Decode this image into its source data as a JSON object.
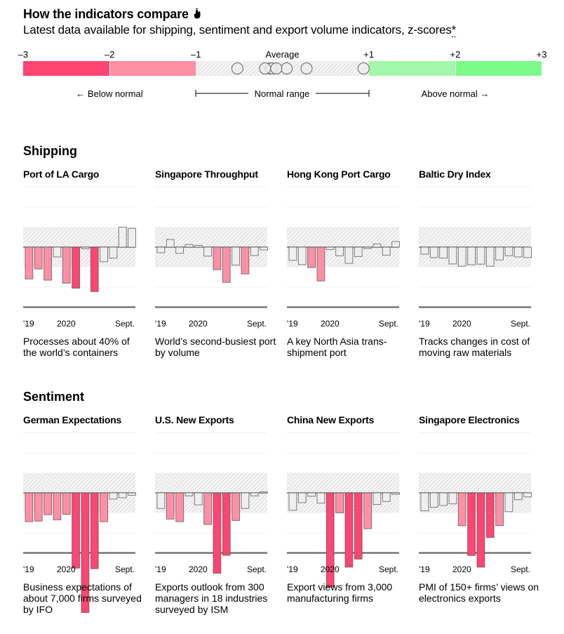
{
  "header": {
    "title": "How the indicators compare",
    "title_icon": "pointer-hand-icon",
    "subtitle": "Latest data available for shipping, sentiment and export volume indicators, z-scores",
    "footnote_marker": "*"
  },
  "legend": {
    "ticks": [
      "–3",
      "–2",
      "–1",
      "Average",
      "+1",
      "+2",
      "+3"
    ],
    "below_label": "Below normal",
    "normal_label": "Normal range",
    "above_label": "Above normal",
    "colors": {
      "very_low": "#ff4572",
      "low": "#ff8fa5",
      "high": "#a3f7a9",
      "very_high": "#7dfb8a"
    }
  },
  "chart_data": [
    {
      "type": "bar",
      "section": "Shipping",
      "title": "Port of LA Cargo",
      "description": "Processes about 40% of the world’s containers",
      "x_labels": [
        "'19",
        "2020",
        "Sept."
      ],
      "values": [
        -1.59,
        -1.09,
        -1.65,
        -0.49,
        -1.8,
        -2.05,
        -0.08,
        -2.22,
        -0.73,
        -0.55,
        1.0,
        0.94
      ],
      "ylim": [
        -3,
        3
      ],
      "normal_range": [
        -1,
        1
      ]
    },
    {
      "type": "bar",
      "section": "Shipping",
      "title": "Singapore Throughput",
      "description": "World’s second-busiest port by volume",
      "x_labels": [
        "'19",
        "2020",
        "Sept."
      ],
      "values": [
        -0.28,
        0.38,
        -0.31,
        0.13,
        0.09,
        -0.45,
        -1.13,
        -1.76,
        -0.9,
        -1.34,
        -0.42,
        -0.14
      ],
      "ylim": [
        -3,
        3
      ],
      "normal_range": [
        -1,
        1
      ]
    },
    {
      "type": "bar",
      "section": "Shipping",
      "title": "Hong Kong Port Cargo",
      "description": "A key North Asia trans-shipment port",
      "x_labels": [
        "'19",
        "2020",
        "Sept."
      ],
      "values": [
        -0.66,
        -0.87,
        -1.02,
        -1.69,
        -0.12,
        -0.43,
        -0.81,
        -0.47,
        -0.07,
        0.16,
        -0.4,
        0.28
      ],
      "ylim": [
        -3,
        3
      ],
      "normal_range": [
        -1,
        1
      ]
    },
    {
      "type": "bar",
      "section": "Shipping",
      "title": "Baltic Dry Index",
      "description": "Tracks changes in cost of moving raw materials",
      "x_labels": [
        "'19",
        "2020",
        "Sept."
      ],
      "values": [
        -0.35,
        -0.52,
        -0.55,
        -0.84,
        -0.95,
        -0.88,
        -0.85,
        -0.95,
        -0.64,
        -0.43,
        -0.49,
        -0.52
      ],
      "ylim": [
        -3,
        3
      ],
      "normal_range": [
        -1,
        1
      ]
    },
    {
      "type": "bar",
      "section": "Sentiment",
      "title": "German Expectations",
      "description": "Business expectations of about 7,000 firms surveyed by IFO",
      "x_labels": [
        "'19",
        "2020",
        "Sept."
      ],
      "values": [
        -1.44,
        -1.41,
        -1.09,
        -1.35,
        -1.07,
        -3.76,
        -5.98,
        -3.79,
        -1.44,
        -0.31,
        -0.24,
        -0.12
      ],
      "ylim": [
        -3,
        3
      ],
      "normal_range": [
        -1,
        1
      ]
    },
    {
      "type": "bar",
      "section": "Sentiment",
      "title": "U.S. New Exports",
      "description": "Exports outlook from 300 managers in 18 industries surveyed by ISM",
      "x_labels": [
        "'19",
        "2020",
        "Sept."
      ],
      "values": [
        -0.78,
        -1.31,
        -1.44,
        -0.15,
        -0.6,
        -1.58,
        -4.02,
        -3.12,
        -1.38,
        -0.78,
        -0.15,
        0.05
      ],
      "ylim": [
        -3,
        3
      ],
      "normal_range": [
        -1,
        1
      ]
    },
    {
      "type": "bar",
      "section": "Sentiment",
      "title": "China New Exports",
      "description": "Export views from 3,000 manufacturing firms",
      "x_labels": [
        "'19",
        "2020",
        "Sept."
      ],
      "values": [
        -0.87,
        -0.49,
        -0.17,
        -0.51,
        -4.7,
        -1.0,
        -3.71,
        -3.31,
        -1.79,
        -0.58,
        -0.43,
        -0.07
      ],
      "ylim": [
        -3,
        3
      ],
      "normal_range": [
        -1,
        1
      ]
    },
    {
      "type": "bar",
      "section": "Sentiment",
      "title": "Singapore Electronics",
      "description": "PMI of 150+ firms’ views on electronics exports",
      "x_labels": [
        "'19",
        "2020",
        "Sept."
      ],
      "values": [
        -0.9,
        -0.72,
        -0.63,
        -0.55,
        -1.64,
        -3.13,
        -3.71,
        -2.23,
        -1.64,
        -0.94,
        -0.34,
        -0.2
      ],
      "ylim": [
        -3,
        3
      ],
      "normal_range": [
        -1,
        1
      ]
    }
  ],
  "sections": [
    {
      "title": "Shipping",
      "panels": [
        0,
        1,
        2,
        3
      ]
    },
    {
      "title": "Sentiment",
      "panels": [
        4,
        5,
        6,
        7
      ]
    }
  ],
  "bar_colors": {
    "very_low": "#ff4572",
    "low": "#ff8fa5",
    "normal": "#efefef",
    "border": "#555555"
  }
}
